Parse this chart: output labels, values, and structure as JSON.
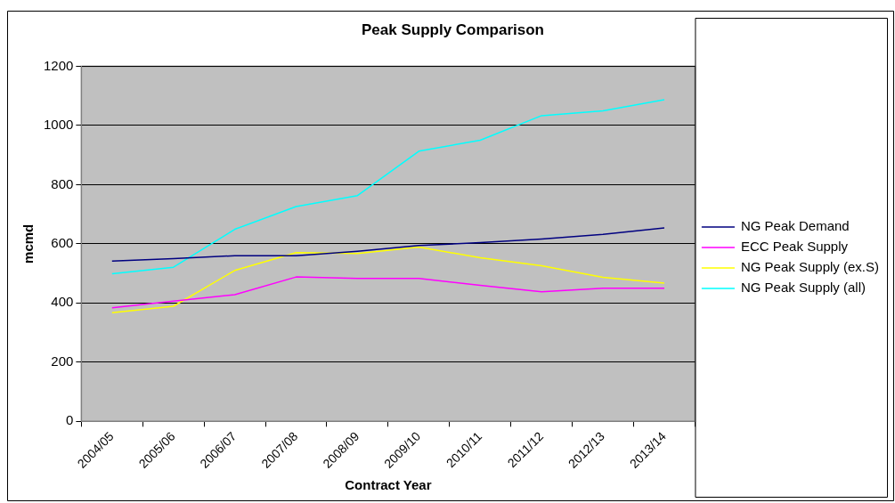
{
  "chart_data": {
    "type": "line",
    "title": "Peak Supply Comparison",
    "xlabel": "Contract Year",
    "ylabel": "mcmd",
    "categories": [
      "2004/05",
      "2005/06",
      "2006/07",
      "2007/08",
      "2008/09",
      "2009/10",
      "2010/11",
      "2011/12",
      "2012/13",
      "2013/14"
    ],
    "series": [
      {
        "name": "NG Peak Demand",
        "color": "#000080",
        "values": [
          542,
          550,
          560,
          560,
          575,
          594,
          604,
          616,
          632,
          654
        ]
      },
      {
        "name": "ECC Peak Supply",
        "color": "#ff00ff",
        "values": [
          384,
          406,
          428,
          488,
          483,
          483,
          460,
          438,
          450,
          450
        ]
      },
      {
        "name": "NG Peak Supply (ex.S)",
        "color": "#ffff00",
        "values": [
          367,
          389,
          510,
          570,
          567,
          589,
          553,
          526,
          487,
          467
        ]
      },
      {
        "name": "NG Peak Supply (all)",
        "color": "#00ffff",
        "values": [
          499,
          521,
          649,
          726,
          763,
          913,
          950,
          1033,
          1049,
          1087
        ]
      }
    ],
    "ylim": [
      0,
      1200
    ],
    "yticks": [
      0,
      200,
      400,
      600,
      800,
      1000,
      1200
    ],
    "grid": "y",
    "legend": "right",
    "marker": "none",
    "line_style": "solid"
  }
}
